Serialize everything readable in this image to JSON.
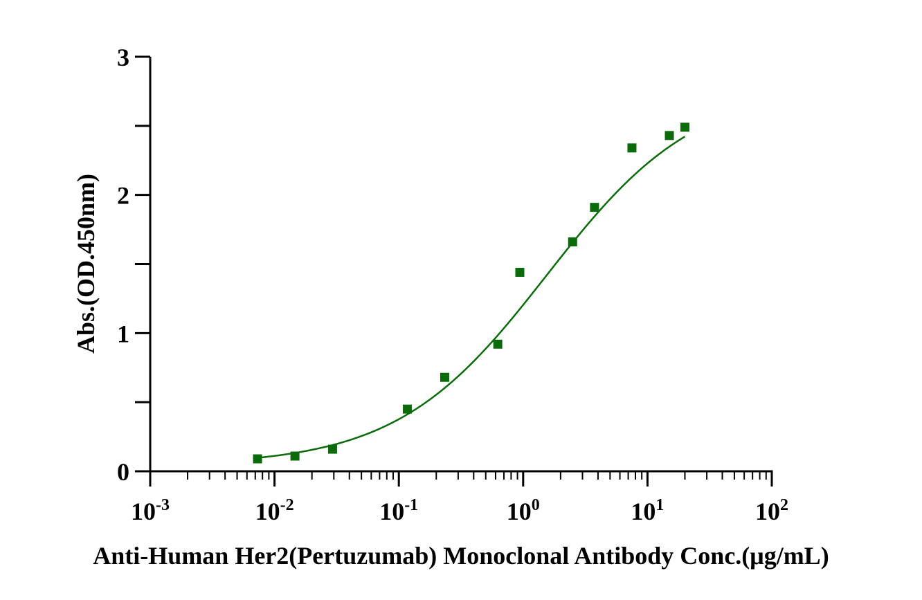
{
  "chart_data": {
    "type": "scatter",
    "title": "",
    "xlabel": "Anti-Human Her2(Pertuzumab) Monoclonal Antibody Conc.(μg/mL)",
    "ylabel": "Abs.(OD.450nm)",
    "x_scale": "log",
    "xlim": [
      0.001,
      100
    ],
    "ylim": [
      0,
      3
    ],
    "x_ticks": [
      {
        "base": "10",
        "exp": "-3",
        "value": 0.001
      },
      {
        "base": "10",
        "exp": "-2",
        "value": 0.01
      },
      {
        "base": "10",
        "exp": "-1",
        "value": 0.1
      },
      {
        "base": "10",
        "exp": "0",
        "value": 1
      },
      {
        "base": "10",
        "exp": "1",
        "value": 10
      },
      {
        "base": "10",
        "exp": "2",
        "value": 100
      }
    ],
    "y_ticks": [
      "0",
      "1",
      "2",
      "3"
    ],
    "grid": false,
    "legend": "none",
    "color": "#0b6b0b",
    "series": [
      {
        "marker": "square",
        "points": [
          {
            "x": 0.0073,
            "y": 0.09
          },
          {
            "x": 0.0146,
            "y": 0.11
          },
          {
            "x": 0.0293,
            "y": 0.16
          },
          {
            "x": 0.117,
            "y": 0.45
          },
          {
            "x": 0.234,
            "y": 0.68
          },
          {
            "x": 0.625,
            "y": 0.92
          },
          {
            "x": 0.94,
            "y": 1.44
          },
          {
            "x": 2.5,
            "y": 1.66
          },
          {
            "x": 3.75,
            "y": 1.91
          },
          {
            "x": 7.5,
            "y": 2.34
          },
          {
            "x": 15,
            "y": 2.43
          },
          {
            "x": 20,
            "y": 2.49
          }
        ]
      }
    ],
    "fit_curve": {
      "type": "4PL",
      "bottom": 0.04,
      "top": 2.8,
      "ec50": 1.55,
      "hill": 0.72,
      "x_range": [
        0.0073,
        20
      ]
    }
  }
}
